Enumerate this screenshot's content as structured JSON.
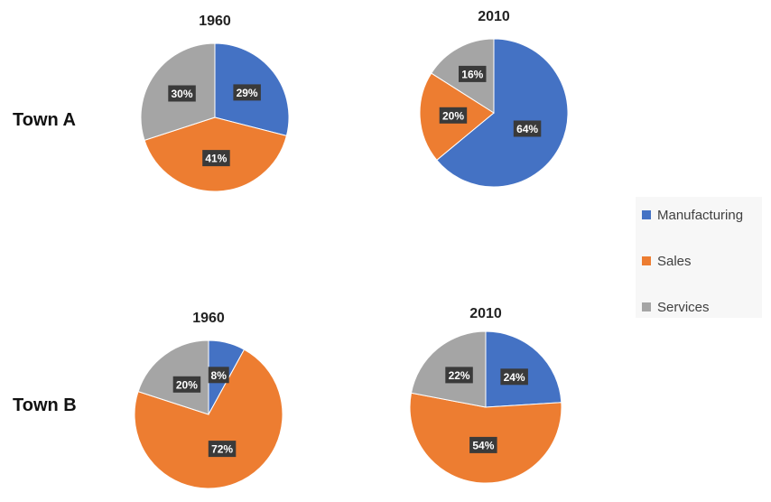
{
  "rows": [
    "Town A",
    "Town B"
  ],
  "legend": {
    "items": [
      {
        "label": "Manufacturing",
        "color": "#4472C4"
      },
      {
        "label": "Sales",
        "color": "#ED7D31"
      },
      {
        "label": "Services",
        "color": "#A5A5A5"
      }
    ]
  },
  "chart_data": [
    {
      "type": "pie",
      "title": "1960",
      "group": "Town A",
      "categories": [
        "Manufacturing",
        "Sales",
        "Services"
      ],
      "values": [
        29,
        41,
        30
      ],
      "labels": [
        "29%",
        "41%",
        "30%"
      ]
    },
    {
      "type": "pie",
      "title": "2010",
      "group": "Town A",
      "categories": [
        "Manufacturing",
        "Sales",
        "Services"
      ],
      "values": [
        64,
        20,
        16
      ],
      "labels": [
        "64%",
        "20%",
        "16%"
      ]
    },
    {
      "type": "pie",
      "title": "1960",
      "group": "Town B",
      "categories": [
        "Manufacturing",
        "Sales",
        "Services"
      ],
      "values": [
        8,
        72,
        20
      ],
      "labels": [
        "8%",
        "72%",
        "20%"
      ]
    },
    {
      "type": "pie",
      "title": "2010",
      "group": "Town B",
      "categories": [
        "Manufacturing",
        "Sales",
        "Services"
      ],
      "values": [
        24,
        54,
        22
      ],
      "labels": [
        "24%",
        "54%",
        "22%"
      ]
    }
  ]
}
